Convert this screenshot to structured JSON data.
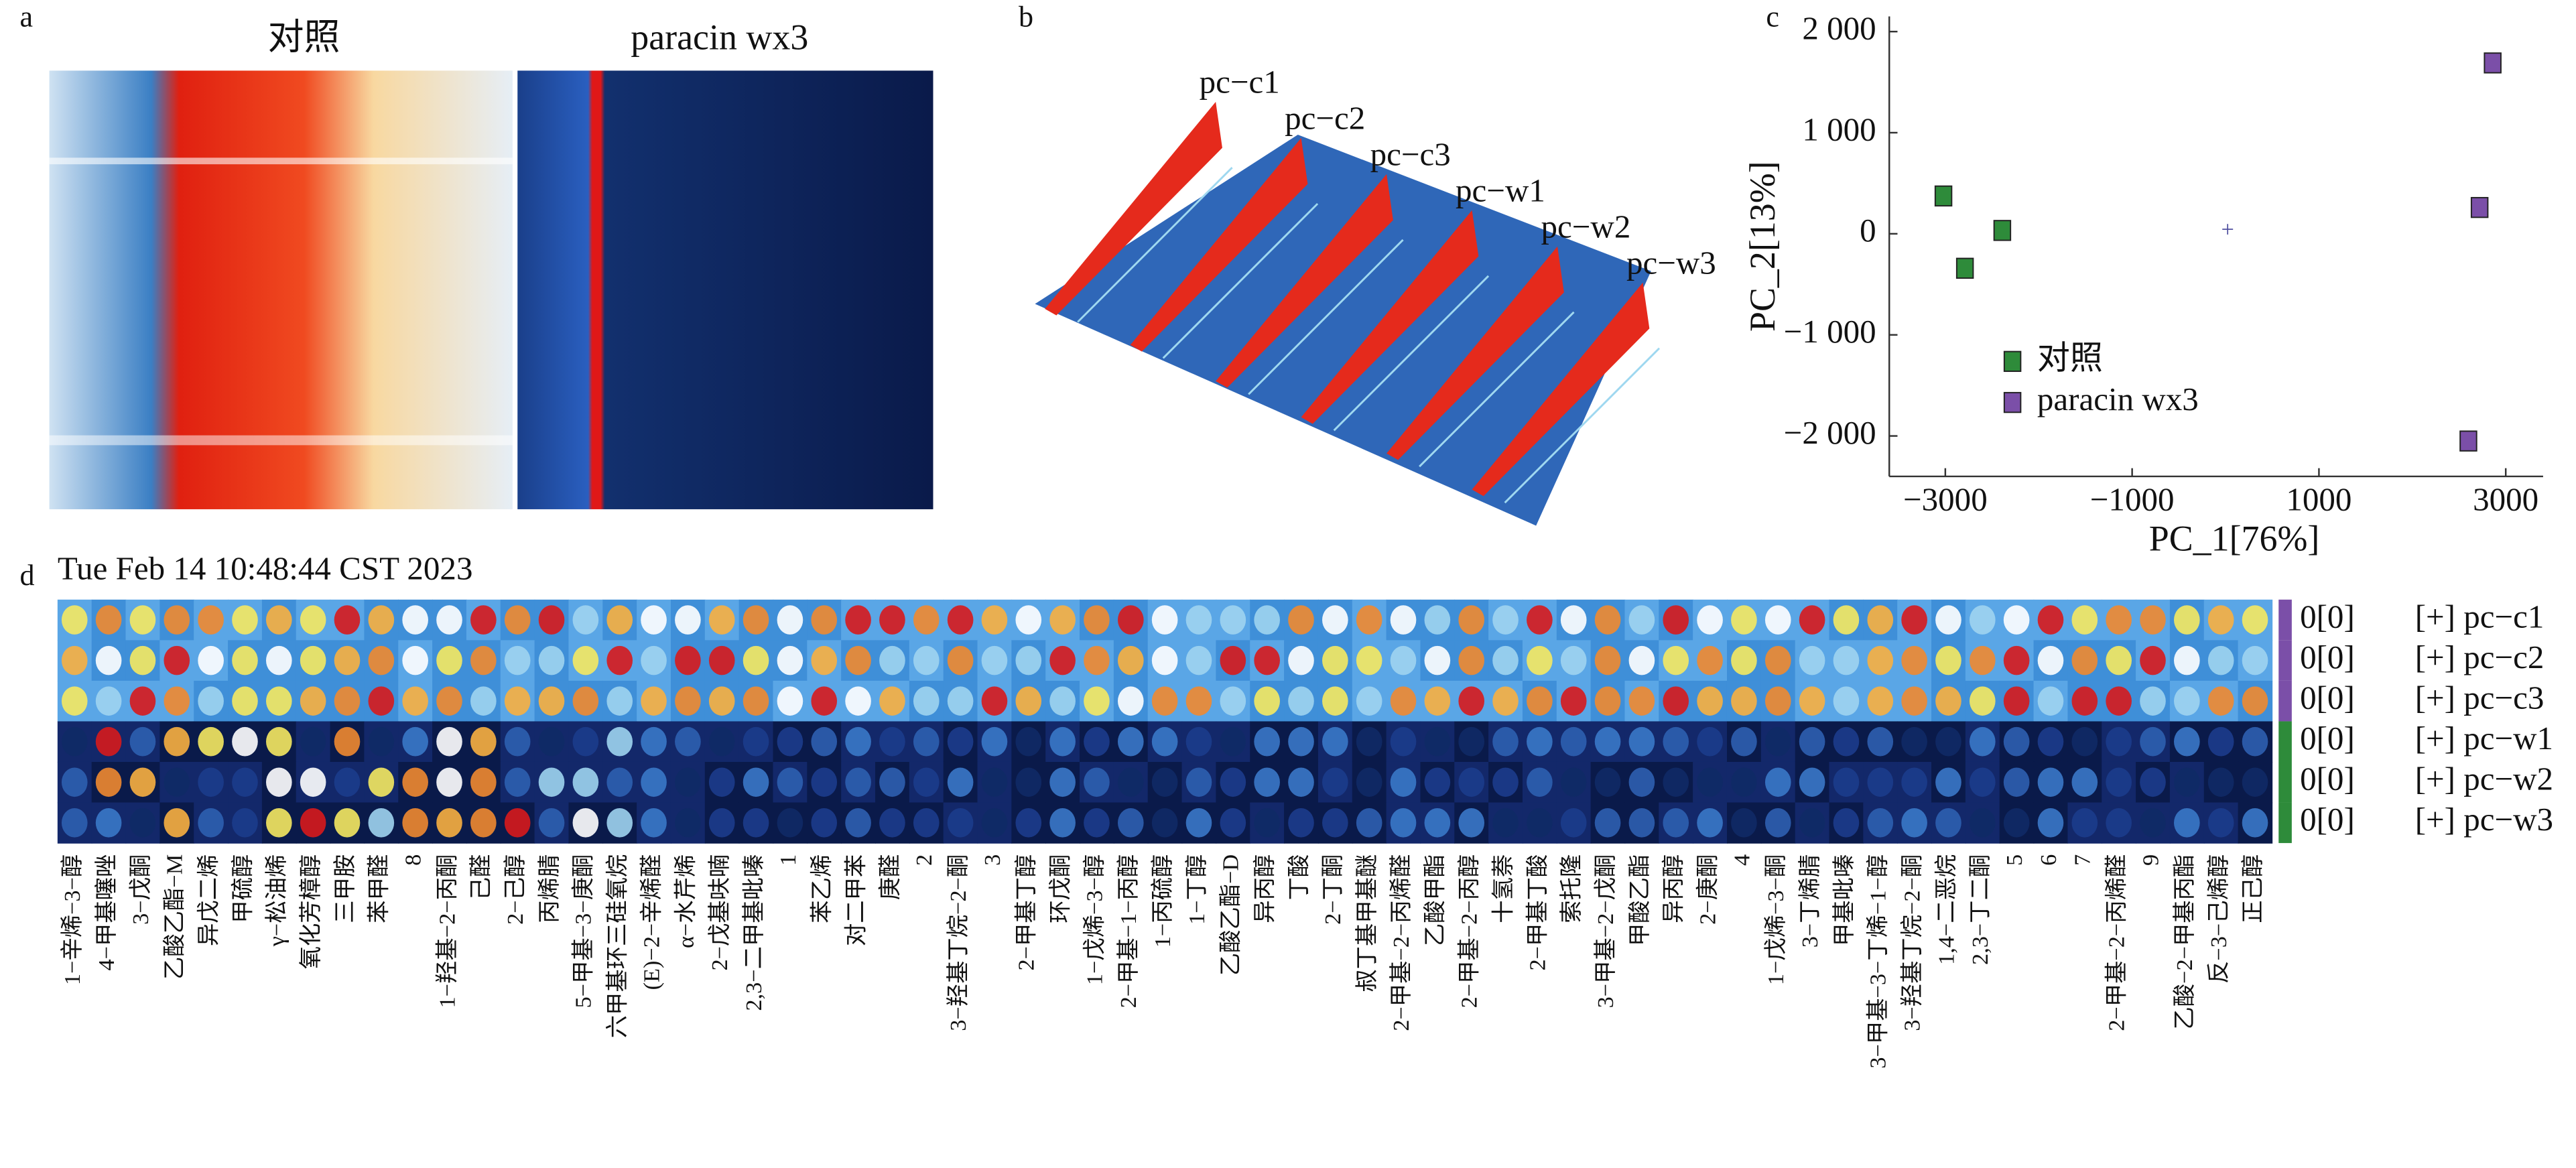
{
  "panels": {
    "a": "a",
    "b": "b",
    "c": "c",
    "d": "d"
  },
  "panel_a": {
    "titles": [
      "对照",
      "paracin wx3"
    ]
  },
  "panel_b": {
    "labels": [
      "pc−c1",
      "pc−c2",
      "pc−c3",
      "pc−w1",
      "pc−w2",
      "pc−w3"
    ]
  },
  "chart_data": {
    "type": "scatter",
    "xlabel": "PC_1[76%]",
    "ylabel": "PC_2[13%]",
    "xlim": [
      -3600,
      3400
    ],
    "ylim": [
      -2400,
      2150
    ],
    "xticks": [
      {
        "value": -3000,
        "label": "−3000"
      },
      {
        "value": -1000,
        "label": "−1000"
      },
      1000,
      3000
    ],
    "yticks": [
      {
        "value": 2000,
        "label": "2 000"
      },
      {
        "value": 1000,
        "label": "1 000"
      },
      0,
      {
        "value": -1000,
        "label": "−1 000"
      },
      {
        "value": -2000,
        "label": "−2 000"
      }
    ],
    "series": [
      {
        "name": "对照",
        "color": "#2e8b3a",
        "x": [
          -3020,
          -2790,
          -2390
        ],
        "y": [
          374,
          -341,
          33
        ]
      },
      {
        "name": "paracin wx3",
        "color": "#7b4fa8",
        "x": [
          2860,
          2720,
          2600
        ],
        "y": [
          1690,
          260,
          -2050
        ]
      }
    ]
  },
  "panel_d": {
    "timestamp": "Tue Feb 14 10:48:44 CST 2023",
    "rows": [
      {
        "count": "0[0]",
        "name": "[+] pc−c1"
      },
      {
        "count": "0[0]",
        "name": "[+] pc−c2"
      },
      {
        "count": "0[0]",
        "name": "[+] pc−c3"
      },
      {
        "count": "0[0]",
        "name": "[+] pc−w1"
      },
      {
        "count": "0[0]",
        "name": "[+] pc−w2"
      },
      {
        "count": "0[0]",
        "name": "[+] pc−w3"
      }
    ],
    "compounds": [
      "1−辛烯−3−醇",
      "4−甲基噻唑",
      "3−戊酮",
      "乙酸乙酯−M",
      "异戊二烯",
      "甲硫醇",
      "γ−松油烯",
      "氧化芳樟醇",
      "三甲胺",
      "苯甲醛",
      "8",
      "1−羟基−2−丙酮",
      "己醛",
      "2−己醇",
      "丙烯腈",
      "5−甲基−3−庚酮",
      "六甲基环三硅氧烷",
      "(E)−2−辛烯醛",
      "α−水芹烯",
      "2−戊基呋喃",
      "2,3−二甲基吡嗪",
      "1",
      "苯乙烯",
      "对二甲苯",
      "庚醛",
      "2",
      "3−羟基丁烷−2−酮",
      "3",
      "2−甲基丁醇",
      "环戊酮",
      "1−戊烯−3−醇",
      "2−甲基−1−丙醇",
      "1−丙硫醇",
      "1−丁醇",
      "乙酸乙酯−D",
      "异丙醇",
      "丁酸",
      "2−丁酮",
      "叔丁基甲基醚",
      "2−甲基−2−丙烯醛",
      "乙酸甲酯",
      "2−甲基−2−丙醇",
      "十氢萘",
      "2−甲基丁酸",
      "索托隆",
      "3−甲基−2−戊酮",
      "甲酸乙酯",
      "异丙醇",
      "2−庚酮",
      "4",
      "1−戊烯−3−酮",
      "3−丁烯腈",
      "甲基吡嗪",
      "3−甲基−3−丁烯−1−醇",
      "3−羟基丁烷−2−酮",
      "1,4−二恶烷",
      "2,3−丁二酮",
      "5",
      "6",
      "7",
      "2−甲基−2−丙烯醛",
      "9",
      "乙酸−2−甲基丙酯",
      "反−3−己烯醇",
      "正己醇"
    ]
  }
}
